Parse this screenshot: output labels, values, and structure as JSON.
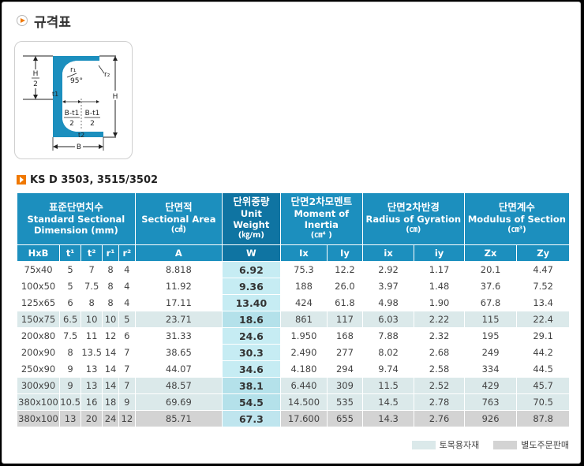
{
  "page": {
    "title": "규격표",
    "standard": "KS D 3503, 3515/3502"
  },
  "diagram": {
    "labels": {
      "h_half_top": "H",
      "h_half_bot": "2",
      "r1": "r₁",
      "r2": "r₂",
      "angle": "95°",
      "t1": "t1",
      "h": "H",
      "bt1_a_top": "B-t1",
      "bt1_a_bot": "2",
      "bt1_b_top": "B-t1",
      "bt1_b_bot": "2",
      "t2": "t2",
      "b": "B"
    }
  },
  "table": {
    "groups": [
      {
        "kr": "표준단면치수",
        "en": "Standard Sectional Dimension (mm)",
        "unit": ""
      },
      {
        "kr": "단면적",
        "en": "Sectional Area",
        "unit": "(㎠)"
      },
      {
        "kr": "단위중량",
        "en": "Unit Weight",
        "unit": "(㎏/m)"
      },
      {
        "kr": "단면2차모멘트",
        "en": "Moment of Inertia",
        "unit": "(㎝⁴ )"
      },
      {
        "kr": "단면2차반경",
        "en": "Radius of Gyration",
        "unit": "(㎝)"
      },
      {
        "kr": "단면계수",
        "en": "Modulus of Section",
        "unit": "(㎝³)"
      }
    ],
    "columns": [
      "HxB",
      "t¹",
      "t²",
      "r¹",
      "r²",
      "A",
      "W",
      "Ix",
      "Iy",
      "ix",
      "iy",
      "Zx",
      "Zy"
    ],
    "rows": [
      {
        "type": "w",
        "cells": [
          "75x40",
          "5",
          "7",
          "8",
          "4",
          "8.818",
          "6.92",
          "75.3",
          "12.2",
          "2.92",
          "1.17",
          "20.1",
          "4.47"
        ]
      },
      {
        "type": "w",
        "cells": [
          "100x50",
          "5",
          "7.5",
          "8",
          "4",
          "11.92",
          "9.36",
          "188",
          "26.0",
          "3.97",
          "1.48",
          "37.6",
          "7.52"
        ]
      },
      {
        "type": "w",
        "cells": [
          "125x65",
          "6",
          "8",
          "8",
          "4",
          "17.11",
          "13.40",
          "424",
          "61.8",
          "4.98",
          "1.90",
          "67.8",
          "13.4"
        ]
      },
      {
        "type": "c",
        "cells": [
          "150x75",
          "6.5",
          "10",
          "10",
          "5",
          "23.71",
          "18.6",
          "861",
          "117",
          "6.03",
          "2.22",
          "115",
          "22.4"
        ]
      },
      {
        "type": "w",
        "cells": [
          "200x80",
          "7.5",
          "11",
          "12",
          "6",
          "31.33",
          "24.6",
          "1.950",
          "168",
          "7.88",
          "2.32",
          "195",
          "29.1"
        ]
      },
      {
        "type": "w",
        "cells": [
          "200x90",
          "8",
          "13.5",
          "14",
          "7",
          "38.65",
          "30.3",
          "2.490",
          "277",
          "8.02",
          "2.68",
          "249",
          "44.2"
        ]
      },
      {
        "type": "w",
        "cells": [
          "250x90",
          "9",
          "13",
          "14",
          "7",
          "44.07",
          "34.6",
          "4.180",
          "294",
          "9.74",
          "2.58",
          "334",
          "44.5"
        ]
      },
      {
        "type": "c",
        "cells": [
          "300x90",
          "9",
          "13",
          "14",
          "7",
          "48.57",
          "38.1",
          "6.440",
          "309",
          "11.5",
          "2.52",
          "429",
          "45.7"
        ]
      },
      {
        "type": "c",
        "cells": [
          "380x100",
          "10.5",
          "16",
          "18",
          "9",
          "69.69",
          "54.5",
          "14.500",
          "535",
          "14.5",
          "2.78",
          "763",
          "70.5"
        ]
      },
      {
        "type": "g",
        "cells": [
          "380x100",
          "13",
          "20",
          "24",
          "12",
          "85.71",
          "67.3",
          "17.600",
          "655",
          "14.3",
          "2.76",
          "926",
          "87.8"
        ]
      }
    ]
  },
  "legend": {
    "civil": "토목용자재",
    "order": "별도주문판매"
  },
  "colors": {
    "header_blue": "#1c8fbe",
    "header_weight": "#0f74a2",
    "civil_row": "#dbe9ea",
    "order_row": "#d3d3d3",
    "weight_col": "#c6ecf3",
    "accent_orange": "#f07800"
  },
  "icons": {
    "title": "play-circle-icon",
    "standard": "arrow-square-icon"
  }
}
